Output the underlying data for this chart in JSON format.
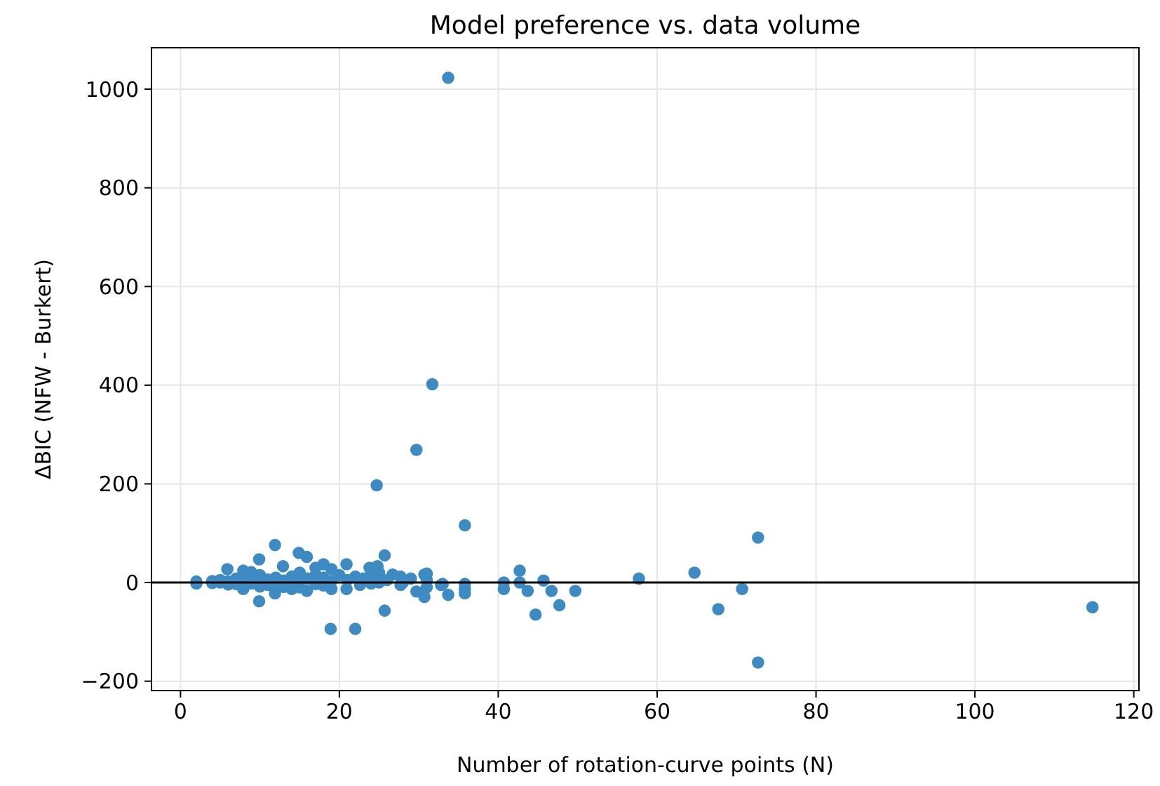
{
  "chart_data": {
    "type": "scatter",
    "title": "Model preference vs. data volume",
    "xlabel": "Number of rotation-curve points (N)",
    "ylabel": "ΔBIC (NFW - Burkert)",
    "xlim": [
      -3.65,
      120.65
    ],
    "ylim": [
      -219,
      1084
    ],
    "xticks": [
      0,
      20,
      40,
      60,
      80,
      100,
      120
    ],
    "yticks": [
      -200,
      0,
      200,
      400,
      600,
      800,
      1000
    ],
    "grid": true,
    "marker": "circle",
    "ref_lines": [
      {
        "axis": "y",
        "value": 0,
        "color": "#000000"
      }
    ],
    "series": [
      {
        "color": "#3d8bc2",
        "x": [
          33.7,
          31.7,
          29.7,
          24.7,
          35.8,
          72.7,
          11.9,
          14.9,
          15.9,
          25.7,
          9.9,
          5.9,
          12.9,
          18,
          20.9,
          19,
          17,
          7.9,
          8.9,
          23.8,
          24.8,
          42.7,
          26.7,
          27.7,
          30.7,
          64.7,
          57.7,
          45.7,
          40.7,
          42.7,
          32.8,
          35.8,
          35.8,
          35.8,
          33.7,
          30.7,
          29.7,
          40.7,
          43.7,
          46.7,
          49.7,
          47.7,
          44.7,
          70.7,
          67.7,
          72.7,
          114.8,
          25.7,
          18.9,
          22,
          9.9,
          11.9,
          15.9,
          14,
          7.9,
          20.9,
          22.6,
          27.7,
          19,
          2,
          2,
          4,
          4,
          5,
          5,
          6,
          6,
          7,
          7,
          8,
          9,
          10,
          10,
          11,
          11,
          12,
          12,
          13,
          13,
          14,
          15,
          15,
          15,
          16,
          17,
          17,
          18,
          18,
          19,
          20,
          21,
          22,
          23,
          24,
          24,
          25,
          25,
          26,
          28,
          29,
          31,
          31,
          31,
          33
        ],
        "values": [
          1023,
          402,
          269,
          197,
          116,
          91,
          76,
          60,
          52,
          55,
          47,
          27,
          33,
          37,
          37,
          27,
          30,
          24,
          21,
          30,
          33,
          24,
          16,
          12,
          16,
          20,
          8,
          4,
          0,
          0,
          -5,
          -3,
          -13,
          -22,
          -25,
          -29,
          -18,
          -13,
          -17,
          -17,
          -17,
          -46,
          -65,
          -13,
          -54,
          -162,
          -50,
          -57,
          -94,
          -94,
          -38,
          -22,
          -17,
          -13,
          -13,
          -13,
          -5,
          -5,
          -13,
          2,
          -2,
          3,
          -1,
          5,
          0,
          2,
          -4,
          8,
          -3,
          5,
          -2,
          15,
          -8,
          6,
          -5,
          10,
          -3,
          4,
          -9,
          12,
          20,
          5,
          -10,
          8,
          15,
          -3,
          10,
          -6,
          3,
          15,
          5,
          12,
          8,
          18,
          -2,
          20,
          0,
          5,
          0,
          8,
          18,
          5,
          -10,
          -3
        ]
      }
    ]
  }
}
